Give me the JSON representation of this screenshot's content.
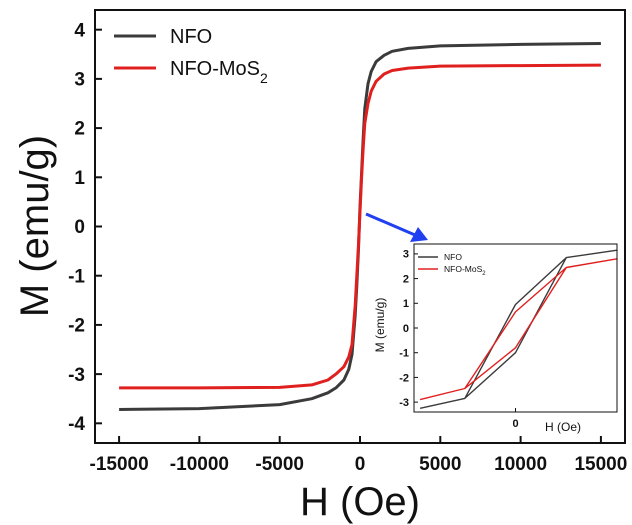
{
  "chart_data": [
    {
      "type": "line",
      "title": "",
      "xlabel": "H (Oe)",
      "ylabel": "M (emu/g)",
      "xlim": [
        -16500,
        16500
      ],
      "ylim": [
        -4.4,
        4.4
      ],
      "xticks": [
        "-15000",
        "-10000",
        "-5000",
        "0",
        "5000",
        "10000",
        "15000"
      ],
      "yticks": [
        "-4",
        "-3",
        "-2",
        "-1",
        "0",
        "1",
        "2",
        "3",
        "4"
      ],
      "legend": "top-left",
      "series": [
        {
          "name": "NFO",
          "color": "#3b3b3b",
          "x": [
            -15000,
            -10000,
            -5000,
            -3000,
            -2000,
            -1500,
            -1000,
            -700,
            -500,
            -300,
            -200,
            -100,
            0,
            100,
            200,
            300,
            500,
            700,
            1000,
            1500,
            2000,
            3000,
            5000,
            10000,
            15000
          ],
          "y": [
            -3.72,
            -3.7,
            -3.62,
            -3.5,
            -3.38,
            -3.28,
            -3.12,
            -2.9,
            -2.6,
            -1.8,
            -1.2,
            -0.5,
            0.4,
            1.1,
            1.8,
            2.4,
            2.9,
            3.15,
            3.35,
            3.48,
            3.56,
            3.62,
            3.67,
            3.7,
            3.72
          ]
        },
        {
          "name": "NFO-MoS2",
          "color": "#e0201f",
          "x": [
            -15000,
            -10000,
            -5000,
            -3000,
            -2000,
            -1500,
            -1000,
            -700,
            -500,
            -300,
            -200,
            -100,
            0,
            100,
            200,
            300,
            500,
            700,
            1000,
            1500,
            2000,
            3000,
            5000,
            10000,
            15000
          ],
          "y": [
            -3.28,
            -3.28,
            -3.27,
            -3.22,
            -3.12,
            -3.0,
            -2.85,
            -2.65,
            -2.4,
            -1.6,
            -1.0,
            -0.4,
            0.3,
            1.0,
            1.6,
            2.1,
            2.5,
            2.75,
            2.95,
            3.1,
            3.17,
            3.22,
            3.26,
            3.27,
            3.28
          ]
        }
      ]
    },
    {
      "type": "line",
      "title": "",
      "xlabel": "H (Oe)",
      "ylabel": "M (emu/g)",
      "xlim": [
        -1000,
        1000
      ],
      "ylim": [
        -3.4,
        3.4
      ],
      "xticks": [
        "0"
      ],
      "yticks": [
        "-3",
        "-2",
        "-1",
        "0",
        "1",
        "2",
        "3"
      ],
      "legend": "top-left",
      "series": [
        {
          "name": "NFO",
          "color": "#3b3b3b",
          "x": [
            -940,
            -500,
            0,
            500,
            1000,
            500,
            0,
            -500,
            -940
          ],
          "y": [
            -3.25,
            -2.85,
            0.95,
            2.85,
            3.15,
            2.85,
            -1.0,
            -2.85,
            -3.25
          ]
        },
        {
          "name": "NFO-MoS2",
          "color": "#e0201f",
          "x": [
            -940,
            -500,
            0,
            500,
            1000,
            500,
            0,
            -500,
            -940
          ],
          "y": [
            -2.9,
            -2.45,
            0.65,
            2.45,
            2.8,
            2.45,
            -0.8,
            -2.45,
            -2.9
          ]
        }
      ]
    }
  ]
}
